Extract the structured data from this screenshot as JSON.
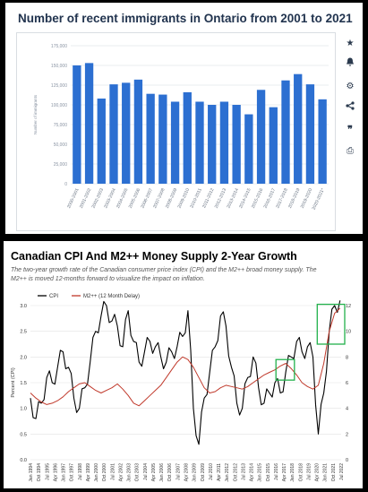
{
  "top": {
    "title": "Number of recent immigrants in Ontario from 2001 to 2021",
    "toolbar": [
      {
        "icon": "star-icon",
        "glyph": "★"
      },
      {
        "icon": "bell-icon",
        "glyph": "🔔"
      },
      {
        "icon": "gear-icon",
        "glyph": "⚙"
      },
      {
        "icon": "share-icon",
        "glyph": "<"
      },
      {
        "icon": "quote-icon",
        "glyph": "❞"
      },
      {
        "icon": "print-icon",
        "glyph": "⎙"
      }
    ]
  },
  "bottom": {
    "title": "Canadian CPI And M2++ Money Supply 2-Year Growth",
    "subtitle_line1": "The two-year growth rate of the Canadian consumer price index (CPI) and the M2++ broad money supply. The",
    "subtitle_line2": "M2++ is moved 12-months forward to visualize the impact on inflation."
  },
  "chart_data": [
    {
      "type": "bar",
      "title": "Number of recent immigrants in Ontario from 2001 to 2021",
      "ylabel": "Number of immigrants",
      "ylim": [
        0,
        175000
      ],
      "yticks": [
        0,
        25000,
        50000,
        75000,
        100000,
        125000,
        150000,
        175000
      ],
      "ytick_labels": [
        "0",
        "25,000",
        "50,000",
        "75,000",
        "100,000",
        "125,000",
        "150,000",
        "175,000"
      ],
      "grid": true,
      "bar_color": "#2c6fd1",
      "categories": [
        "2000-2001",
        "2001-2002",
        "2002-2003",
        "2003-2004",
        "2004-2005",
        "2005-2006",
        "2006-2007",
        "2007-2008",
        "2008-2009",
        "2009-2010",
        "2010-2011",
        "2011-2012",
        "2012-2013",
        "2013-2014",
        "2014-2015",
        "2015-2016",
        "2016-2017",
        "2017-2018",
        "2018-2019",
        "2019-2020",
        "2020-2021*"
      ],
      "values": [
        150000,
        153000,
        108000,
        126000,
        128000,
        132000,
        114000,
        113000,
        104000,
        116000,
        104000,
        100000,
        104000,
        100000,
        88000,
        119000,
        97000,
        131000,
        139000,
        126000,
        107000
      ]
    },
    {
      "type": "line",
      "title": "Canadian CPI And M2++ Money Supply 2-Year Growth",
      "ylabel": "Percent (CPI)",
      "ylim": [
        0,
        3.0
      ],
      "yticks": [
        0.0,
        0.5,
        1.0,
        1.5,
        2.0,
        2.5,
        3.0
      ],
      "ytick_labels": [
        "0.0",
        "0.5",
        "1.0",
        "1.5",
        "2.0",
        "2.5",
        "3.0"
      ],
      "y2lim": [
        0,
        12
      ],
      "y2ticks": [
        0,
        2,
        4,
        6,
        8,
        10,
        12
      ],
      "y2tick_labels": [
        "0",
        "2",
        "4",
        "6",
        "8",
        "10",
        "12"
      ],
      "x_labels": [
        "Jan 1994",
        "Oct 1994",
        "Jul 1995",
        "Apr 1996",
        "Jan 1997",
        "Oct 1997",
        "Jul 1998",
        "Apr 1999",
        "Jan 2000",
        "Oct 2000",
        "Jul 2001",
        "Apr 2002",
        "Jan 2003",
        "Oct 2003",
        "Jul 2004",
        "Apr 2005",
        "Jan 2006",
        "Oct 2006",
        "Jul 2007",
        "Apr 2008",
        "Jan 2009",
        "Oct 2009",
        "Jul 2010",
        "Apr 2011",
        "Jan 2012",
        "Oct 2012",
        "Jul 2013",
        "Apr 2014",
        "Jan 2015",
        "Oct 2015",
        "Jul 2016",
        "Apr 2017",
        "Jan 2018",
        "Oct 2018",
        "Jul 2019",
        "Apr 2020",
        "Jan 2021",
        "Oct 2021",
        "Jul 2022"
      ],
      "legend": "top-left",
      "series": [
        {
          "name": "CPI",
          "axis": "left",
          "color": "#000000",
          "x": [
            1994.0,
            1994.5,
            1995.0,
            1995.5,
            1996.0,
            1996.5,
            1997.0,
            1997.5,
            1998.0,
            1998.5,
            1999.0,
            1999.5,
            2000.0,
            2000.5,
            2001.0,
            2001.5,
            2002.0,
            2002.5,
            2003.0,
            2003.5,
            2004.0,
            2004.5,
            2005.0,
            2005.5,
            2006.0,
            2006.5,
            2007.0,
            2007.5,
            2008.0,
            2008.5,
            2009.0,
            2009.5,
            2010.0,
            2010.5,
            2011.0,
            2011.5,
            2012.0,
            2012.5,
            2013.0,
            2013.5,
            2014.0,
            2014.5,
            2015.0,
            2015.5,
            2016.0,
            2016.5,
            2017.0,
            2017.5,
            2018.0,
            2018.5,
            2019.0,
            2019.5,
            2020.0,
            2020.5,
            2021.0,
            2021.5,
            2022.0,
            2022.5
          ],
          "values": [
            1.2,
            0.8,
            1.1,
            1.6,
            1.5,
            1.8,
            2.1,
            1.8,
            1.2,
            1.0,
            1.4,
            1.9,
            2.5,
            2.8,
            3.0,
            2.7,
            2.6,
            2.2,
            2.9,
            2.3,
            1.9,
            2.1,
            2.3,
            2.2,
            2.0,
            1.9,
            2.1,
            2.2,
            2.4,
            2.9,
            1.0,
            0.3,
            1.2,
            1.7,
            2.2,
            2.8,
            2.6,
            1.8,
            1.1,
            1.0,
            1.6,
            2.0,
            1.4,
            1.1,
            1.3,
            1.5,
            1.3,
            1.7,
            2.0,
            2.3,
            2.1,
            2.2,
            2.0,
            0.5,
            1.3,
            2.5,
            3.0,
            3.1
          ]
        },
        {
          "name": "M2++ (12 Month Delay)",
          "axis": "right",
          "color": "#c0392b",
          "x": [
            1994.0,
            1994.5,
            1995.0,
            1995.5,
            1996.0,
            1996.5,
            1997.0,
            1997.5,
            1998.0,
            1998.5,
            1999.0,
            1999.5,
            2000.0,
            2000.5,
            2001.0,
            2001.5,
            2002.0,
            2002.5,
            2003.0,
            2003.5,
            2004.0,
            2004.5,
            2005.0,
            2005.5,
            2006.0,
            2006.5,
            2007.0,
            2007.5,
            2008.0,
            2008.5,
            2009.0,
            2009.5,
            2010.0,
            2010.5,
            2011.0,
            2011.5,
            2012.0,
            2012.5,
            2013.0,
            2013.5,
            2014.0,
            2014.5,
            2015.0,
            2015.5,
            2016.0,
            2016.5,
            2017.0,
            2017.5,
            2018.0,
            2018.5,
            2019.0,
            2019.5,
            2020.0,
            2020.5,
            2021.0,
            2021.5,
            2022.0,
            2022.5
          ],
          "values": [
            5.2,
            4.8,
            4.5,
            4.3,
            4.4,
            4.6,
            4.9,
            5.3,
            5.6,
            5.9,
            6.0,
            5.7,
            5.4,
            5.2,
            5.4,
            5.6,
            5.9,
            5.5,
            5.0,
            4.4,
            4.2,
            4.6,
            5.0,
            5.4,
            5.8,
            6.4,
            7.0,
            7.6,
            8.0,
            7.8,
            7.2,
            6.4,
            5.6,
            5.2,
            5.3,
            5.6,
            5.8,
            5.7,
            5.6,
            5.5,
            5.7,
            6.0,
            6.3,
            6.6,
            6.8,
            7.0,
            7.3,
            7.5,
            7.1,
            6.6,
            6.0,
            5.7,
            5.5,
            5.8,
            7.5,
            10.0,
            11.4,
            11.8
          ]
        }
      ],
      "annotations": [
        "green box around 2017–2018 peak",
        "green box around 2021–2022 peak"
      ]
    }
  ]
}
